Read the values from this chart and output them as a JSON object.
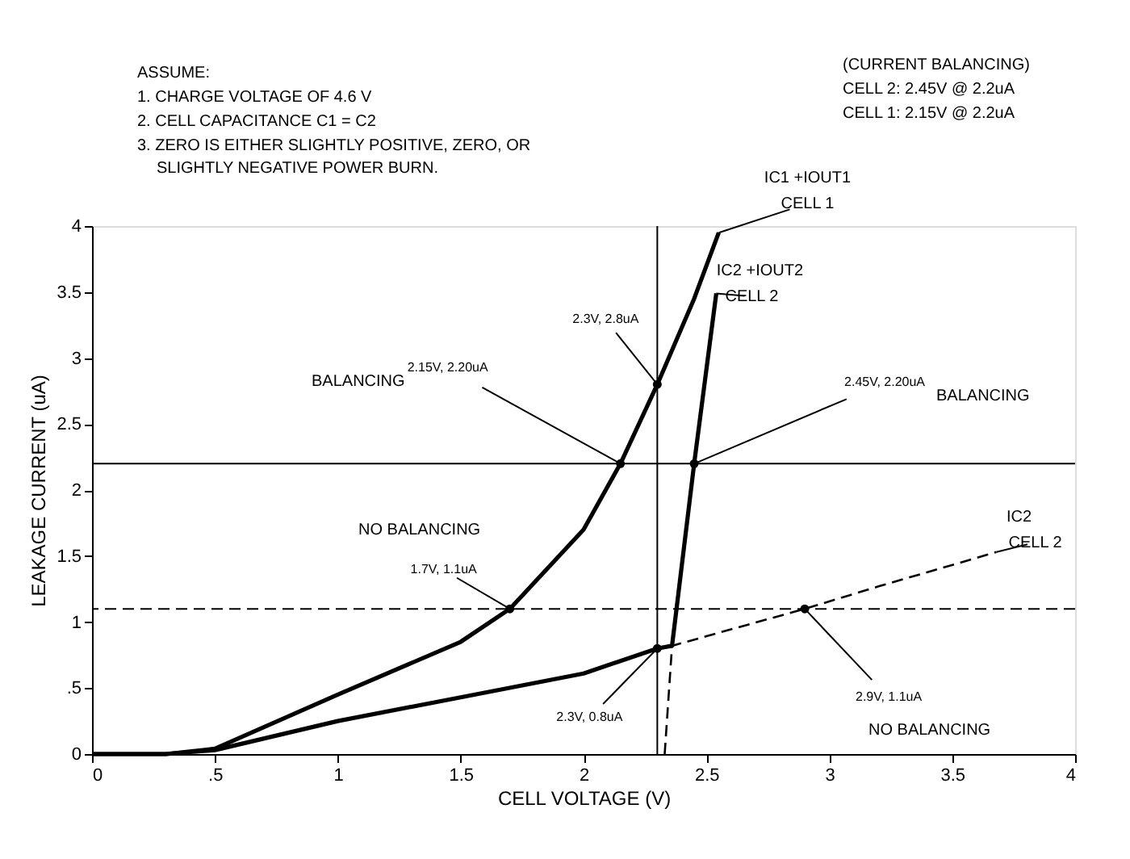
{
  "chart_data": {
    "type": "line",
    "xlabel": "CELL VOLTAGE (V)",
    "ylabel": "LEAKAGE CURRENT (uA)",
    "xlim": [
      0,
      4
    ],
    "ylim": [
      0,
      4
    ],
    "xticks": [
      0,
      {
        "value": 0.5,
        "label": ".5"
      },
      1,
      1.5,
      2,
      2.5,
      3,
      3.5,
      4
    ],
    "yticks": [
      0,
      {
        "value": 0.5,
        "label": ".5"
      },
      1,
      1.5,
      2,
      2.5,
      3,
      3.5,
      4
    ],
    "grid": false,
    "line_style": "solid",
    "marker": "none",
    "series": [
      {
        "name": "IC1 +IOUT1",
        "color": "#000000",
        "x": [
          0,
          0.3,
          0.5,
          1,
          1.5,
          1.7,
          2,
          2.15,
          2.3,
          2.45,
          2.55
        ],
        "values": [
          0,
          0,
          0.04,
          0.45,
          0.85,
          1.1,
          1.7,
          2.2,
          2.8,
          3.45,
          3.95
        ]
      },
      {
        "name": "IC2 +IOUT2",
        "color": "#000000",
        "x": [
          0,
          0.3,
          0.5,
          1,
          1.5,
          2,
          2.3,
          2.36,
          2.45,
          2.54
        ],
        "values": [
          0,
          0,
          0.03,
          0.25,
          0.43,
          0.61,
          0.8,
          0.82,
          2.2,
          3.49
        ]
      },
      {
        "name": "IC2",
        "color": "#000000",
        "line_style": "dashed",
        "x": [
          2.33,
          2.36,
          2.9,
          3.2,
          3.68
        ],
        "values": [
          0,
          0.82,
          1.1,
          1.27,
          1.53
        ]
      },
      {
        "type": "scatter",
        "marker": "circle",
        "color": "#000000",
        "x": [
          1.7,
          2.15,
          2.3,
          2.45,
          2.3,
          2.9
        ],
        "values": [
          1.1,
          2.2,
          2.8,
          2.2,
          0.8,
          1.1
        ]
      }
    ],
    "ref_lines": [
      {
        "axis": "y",
        "value": 2.2,
        "color": "#000000"
      },
      {
        "axis": "y",
        "value": 1.1,
        "color": "#000000",
        "line_style": "dashed"
      },
      {
        "axis": "x",
        "value": 2.3,
        "color": "#000000"
      }
    ],
    "annotations": [
      "ASSUME:",
      "1. CHARGE VOLTAGE OF 4.6 V",
      "2. CELL CAPACITANCE C1 = C2",
      "3. ZERO IS EITHER SLIGHTLY POSITIVE, ZERO, OR",
      "SLIGHTLY NEGATIVE POWER BURN.",
      "(CURRENT BALANCING)",
      "CELL 2: 2.45V @ 2.2uA",
      "CELL 1: 2.15V @ 2.2uA",
      "BALANCING",
      "BALANCING",
      "NO BALANCING",
      "NO BALANCING",
      {
        "text": "CELL 1",
        "x": 2.55,
        "y": 3.95
      },
      {
        "text": "CELL 2",
        "x": 2.54,
        "y": 3.49
      },
      {
        "text": "CELL 2",
        "x": 3.68,
        "y": 1.53
      },
      {
        "text": "2.3V, 2.8uA",
        "x": 2.3,
        "y": 2.8
      },
      {
        "text": "2.15V, 2.20uA",
        "x": 2.15,
        "y": 2.2
      },
      {
        "text": "2.45V, 2.20uA",
        "x": 2.45,
        "y": 2.2
      },
      {
        "text": "1.7V, 1.1uA",
        "x": 1.7,
        "y": 1.1
      },
      {
        "text": "2.3V, 0.8uA",
        "x": 2.3,
        "y": 0.8
      },
      {
        "text": "2.9V, 1.1uA",
        "x": 2.9,
        "y": 1.1
      }
    ]
  }
}
